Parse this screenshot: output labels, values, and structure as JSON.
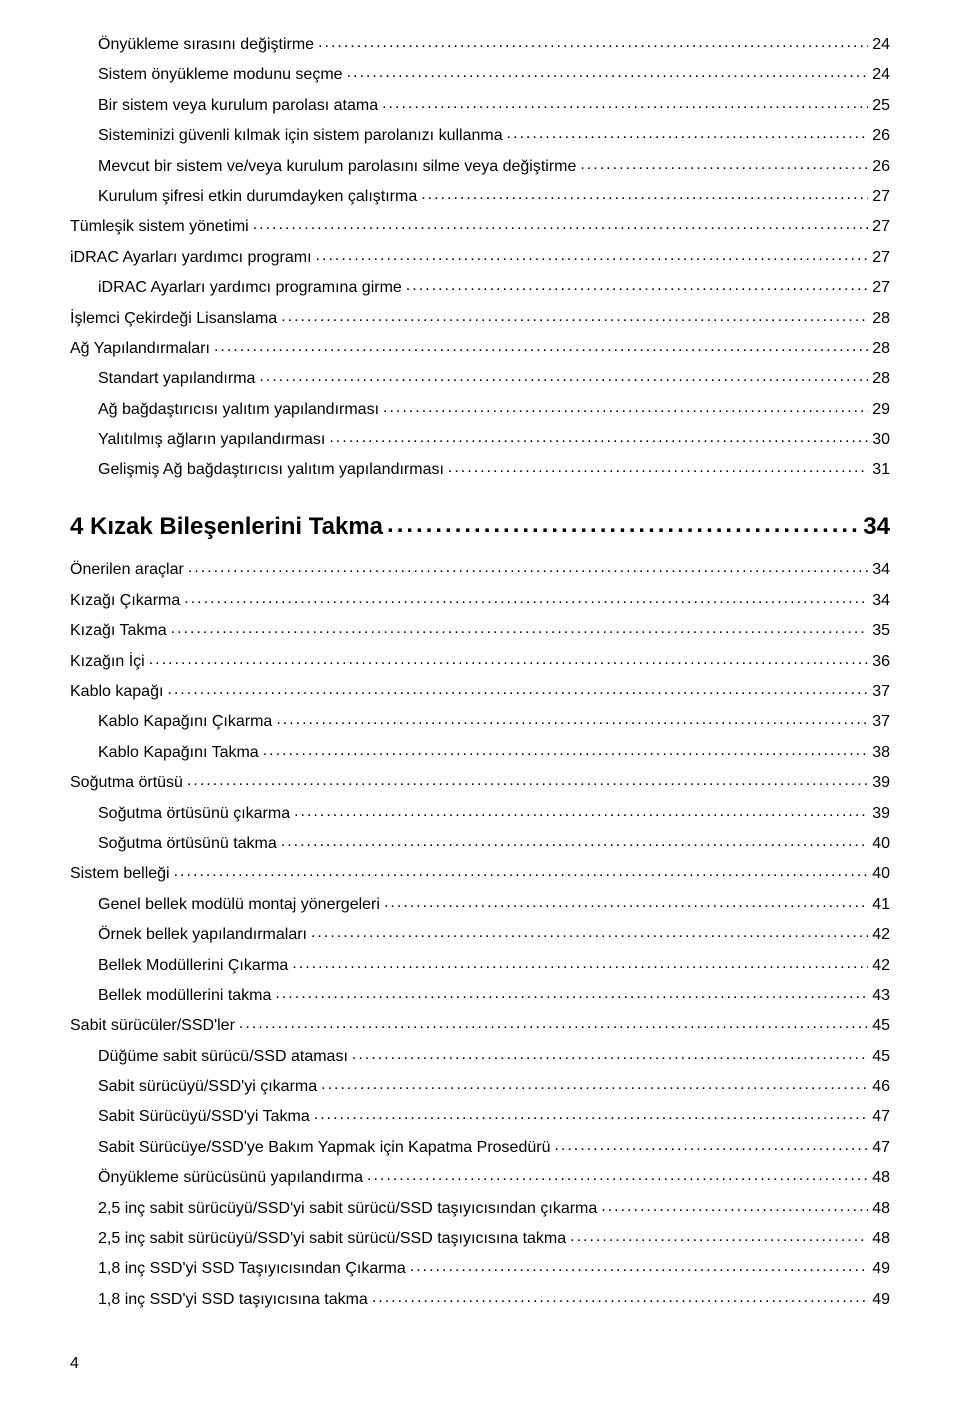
{
  "page_number": "4",
  "entries": [
    {
      "title": "Önyükleme sırasını değiştirme",
      "page": "24",
      "indent": 1,
      "section": false
    },
    {
      "title": "Sistem önyükleme modunu seçme",
      "page": "24",
      "indent": 1,
      "section": false
    },
    {
      "title": "Bir sistem veya kurulum parolası atama",
      "page": "25",
      "indent": 1,
      "section": false
    },
    {
      "title": "Sisteminizi güvenli kılmak için sistem parolanızı kullanma",
      "page": "26",
      "indent": 1,
      "section": false
    },
    {
      "title": "Mevcut bir sistem ve/veya kurulum parolasını silme veya değiştirme",
      "page": "26",
      "indent": 1,
      "section": false
    },
    {
      "title": "Kurulum şifresi etkin durumdayken çalıştırma",
      "page": "27",
      "indent": 1,
      "section": false
    },
    {
      "title": "Tümleşik sistem yönetimi",
      "page": "27",
      "indent": 0,
      "section": false
    },
    {
      "title": "iDRAC Ayarları yardımcı programı",
      "page": "27",
      "indent": 0,
      "section": false
    },
    {
      "title": "iDRAC Ayarları yardımcı programına girme",
      "page": "27",
      "indent": 1,
      "section": false
    },
    {
      "title": "İşlemci Çekirdeği Lisanslama",
      "page": "28",
      "indent": 0,
      "section": false
    },
    {
      "title": "Ağ Yapılandırmaları",
      "page": "28",
      "indent": 0,
      "section": false
    },
    {
      "title": "Standart yapılandırma",
      "page": "28",
      "indent": 1,
      "section": false
    },
    {
      "title": "Ağ bağdaştırıcısı yalıtım yapılandırması",
      "page": "29",
      "indent": 1,
      "section": false
    },
    {
      "title": "Yalıtılmış ağların yapılandırması",
      "page": "30",
      "indent": 1,
      "section": false
    },
    {
      "title": "Gelişmiş Ağ bağdaştırıcısı yalıtım yapılandırması",
      "page": "31",
      "indent": 1,
      "section": false
    },
    {
      "title": "4 Kızak Bileşenlerini Takma",
      "page": "34",
      "indent": 0,
      "section": true
    },
    {
      "title": "Önerilen araçlar",
      "page": "34",
      "indent": 0,
      "section": false
    },
    {
      "title": "Kızağı Çıkarma",
      "page": "34",
      "indent": 0,
      "section": false
    },
    {
      "title": "Kızağı Takma",
      "page": "35",
      "indent": 0,
      "section": false
    },
    {
      "title": "Kızağın İçi",
      "page": "36",
      "indent": 0,
      "section": false
    },
    {
      "title": "Kablo kapağı",
      "page": "37",
      "indent": 0,
      "section": false
    },
    {
      "title": "Kablo Kapağını Çıkarma",
      "page": "37",
      "indent": 1,
      "section": false
    },
    {
      "title": "Kablo Kapağını Takma",
      "page": "38",
      "indent": 1,
      "section": false
    },
    {
      "title": "Soğutma örtüsü",
      "page": "39",
      "indent": 0,
      "section": false
    },
    {
      "title": "Soğutma örtüsünü çıkarma",
      "page": "39",
      "indent": 1,
      "section": false
    },
    {
      "title": "Soğutma örtüsünü takma",
      "page": "40",
      "indent": 1,
      "section": false
    },
    {
      "title": "Sistem belleği",
      "page": "40",
      "indent": 0,
      "section": false
    },
    {
      "title": "Genel bellek modülü montaj yönergeleri",
      "page": "41",
      "indent": 1,
      "section": false
    },
    {
      "title": "Örnek bellek yapılandırmaları",
      "page": "42",
      "indent": 1,
      "section": false
    },
    {
      "title": "Bellek Modüllerini Çıkarma",
      "page": "42",
      "indent": 1,
      "section": false
    },
    {
      "title": "Bellek modüllerini takma",
      "page": "43",
      "indent": 1,
      "section": false
    },
    {
      "title": "Sabit sürücüler/SSD'ler",
      "page": "45",
      "indent": 0,
      "section": false
    },
    {
      "title": "Düğüme sabit sürücü/SSD ataması",
      "page": "45",
      "indent": 1,
      "section": false
    },
    {
      "title": "Sabit sürücüyü/SSD'yi çıkarma",
      "page": "46",
      "indent": 1,
      "section": false
    },
    {
      "title": "Sabit Sürücüyü/SSD'yi Takma",
      "page": "47",
      "indent": 1,
      "section": false
    },
    {
      "title": "Sabit Sürücüye/SSD'ye Bakım Yapmak için Kapatma Prosedürü",
      "page": "47",
      "indent": 1,
      "section": false
    },
    {
      "title": "Önyükleme sürücüsünü yapılandırma",
      "page": "48",
      "indent": 1,
      "section": false
    },
    {
      "title": "2,5 inç sabit sürücüyü/SSD'yi sabit sürücü/SSD taşıyıcısından çıkarma",
      "page": "48",
      "indent": 1,
      "section": false
    },
    {
      "title": "2,5 inç sabit sürücüyü/SSD'yi sabit sürücü/SSD taşıyıcısına takma",
      "page": "48",
      "indent": 1,
      "section": false
    },
    {
      "title": "1,8 inç SSD'yi SSD Taşıyıcısından Çıkarma",
      "page": "49",
      "indent": 1,
      "section": false
    },
    {
      "title": "1,8 inç SSD'yi SSD taşıyıcısına takma",
      "page": "49",
      "indent": 1,
      "section": false
    }
  ]
}
